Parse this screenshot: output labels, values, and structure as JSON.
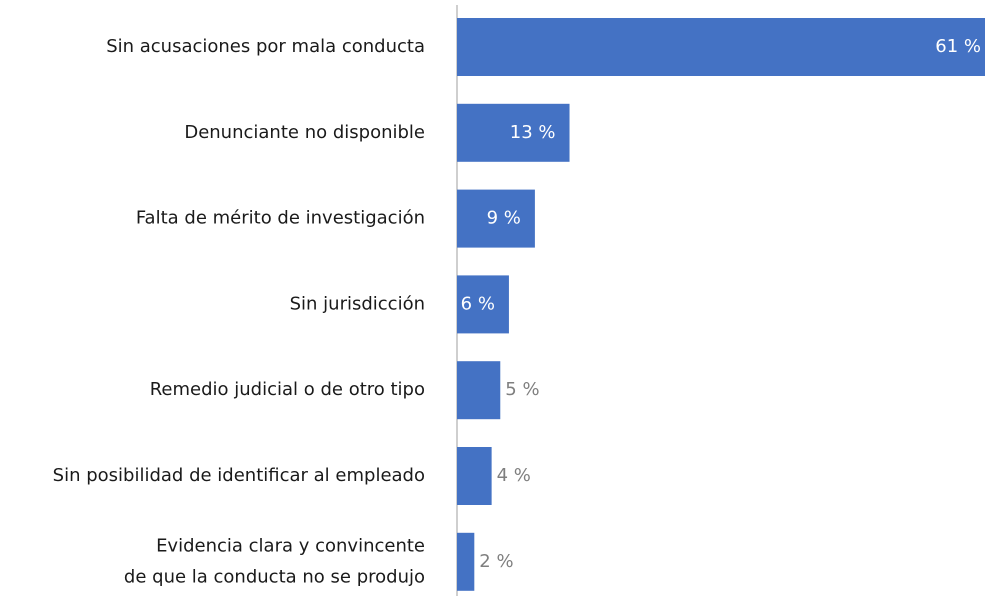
{
  "chart_data": {
    "type": "hbar",
    "categories": [
      "Sin acusaciones por mala conducta",
      "Denunciante no disponible",
      "Falta de mérito de investigación",
      "Sin jurisdicción",
      "Remedio judicial o de otro tipo",
      "Sin posibilidad de identificar al empleado",
      "Evidencia clara y convincente\nde que la conducta no se produjo"
    ],
    "values": [
      61,
      13,
      9,
      6,
      5,
      4,
      2
    ],
    "value_labels": [
      "61 %",
      "13 %",
      "9 %",
      "6 %",
      "5 %",
      "4 %",
      "2 %"
    ],
    "color": "#4472c4",
    "xlim": [
      0,
      61
    ]
  }
}
